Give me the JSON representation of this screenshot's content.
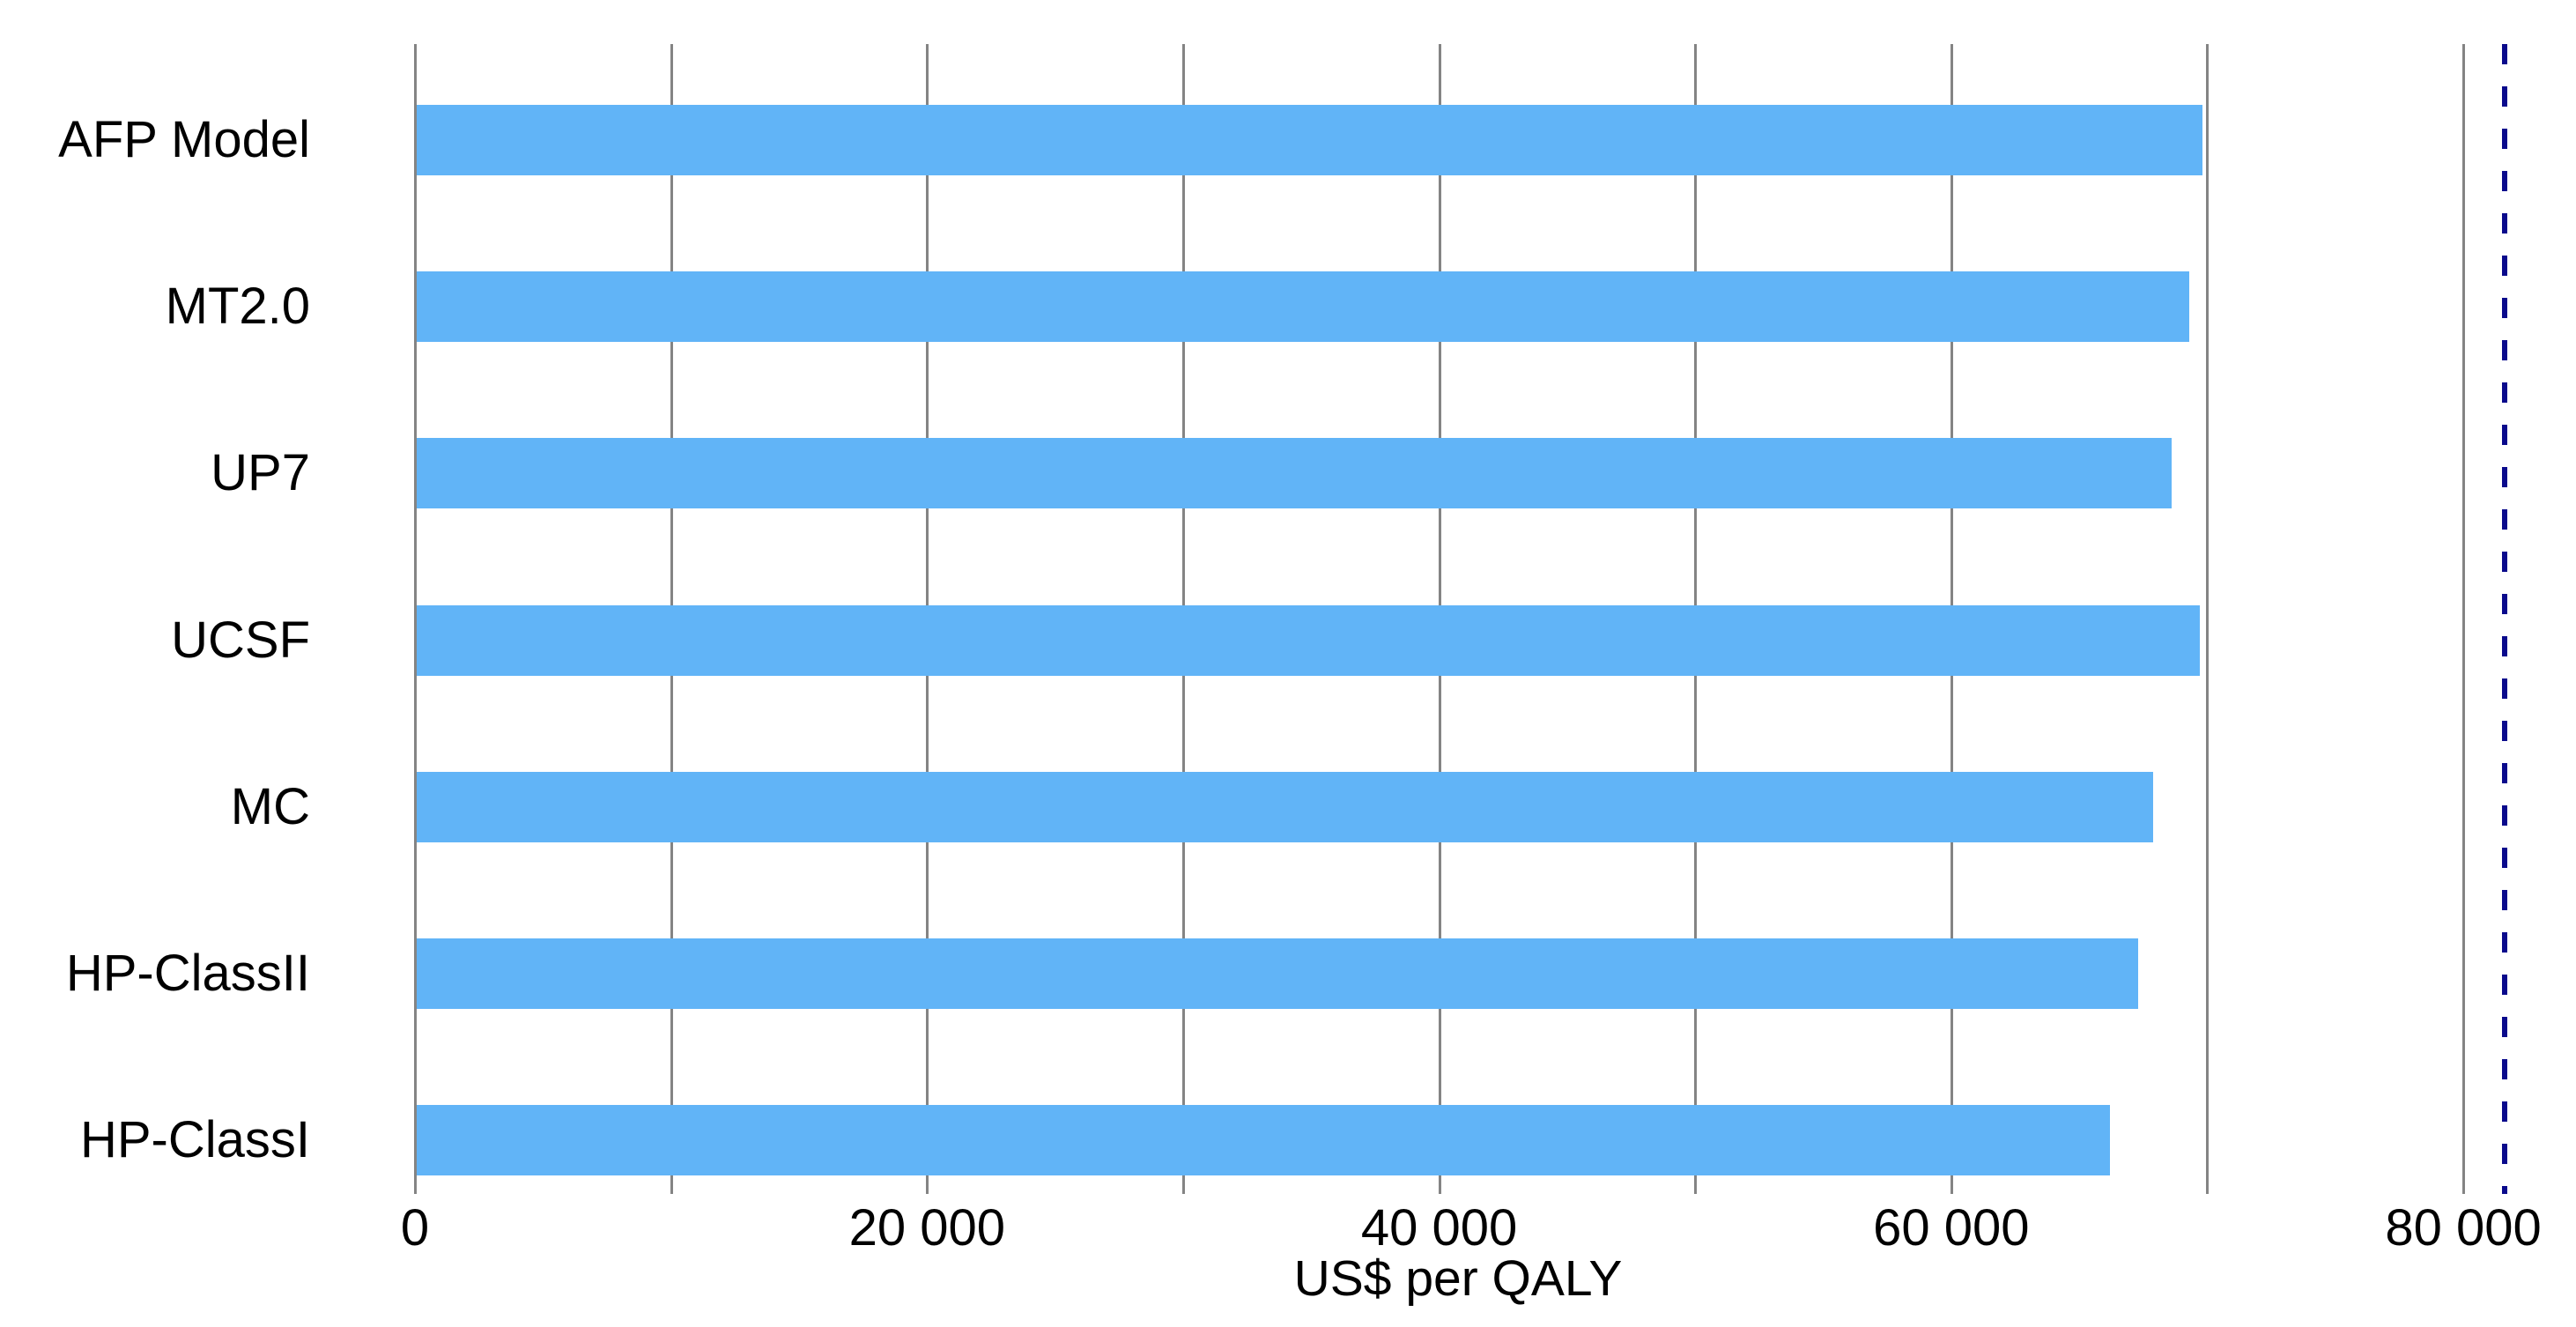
{
  "figure": {
    "background": "#ffffff",
    "title": ""
  },
  "chart_data": {
    "type": "bar",
    "orientation": "horizontal",
    "title": "",
    "xlabel": "US$ per QALY",
    "ylabel": "",
    "categories": [
      "AFP Model",
      "MT2.0",
      "UP7",
      "UCSF",
      "MC",
      "HP-ClassII",
      "HP-ClassI"
    ],
    "values": [
      69800,
      69300,
      68600,
      69700,
      67900,
      67300,
      66200
    ],
    "xlim": [
      0,
      84400
    ],
    "xticks": {
      "values": [
        0,
        20000,
        40000,
        60000,
        80000
      ],
      "labels": [
        "0",
        "20 000",
        "40 000",
        "60 000",
        "80 000"
      ]
    },
    "gridlines": {
      "values": [
        0,
        10000,
        20000,
        30000,
        40000,
        50000,
        60000,
        70000,
        80000
      ],
      "color": "#848484",
      "orientation": "vertical"
    },
    "reference_line": {
      "value": 81600,
      "style": "dashed",
      "color": "#0a0a8c",
      "name": "threshold"
    },
    "bar_color": "#61b4f7",
    "legend": "none",
    "grid": "on"
  }
}
